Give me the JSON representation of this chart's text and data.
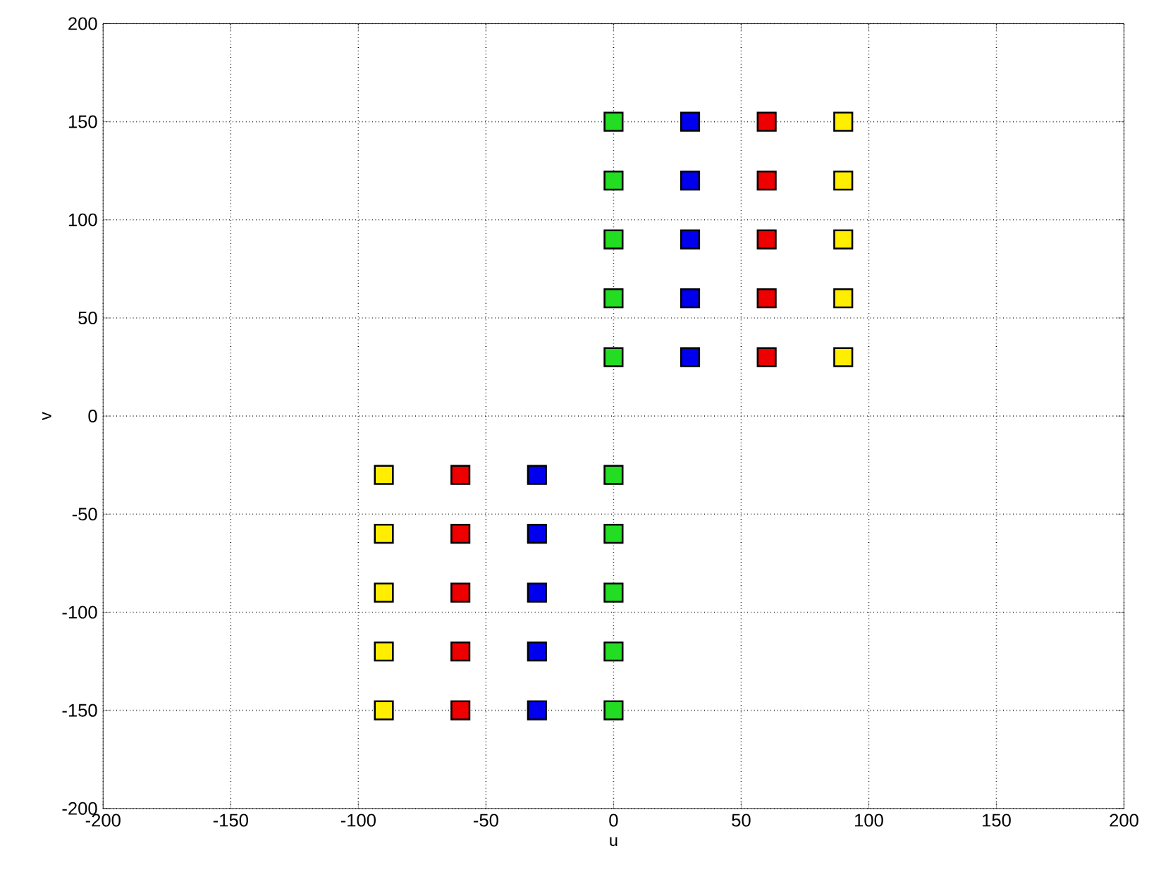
{
  "chart_data": {
    "type": "scatter",
    "xlabel": "u",
    "ylabel": "v",
    "xlim": [
      -200,
      200
    ],
    "ylim": [
      -200,
      200
    ],
    "xticks": [
      -200,
      -150,
      -100,
      -50,
      0,
      50,
      100,
      150,
      200
    ],
    "yticks": [
      -200,
      -150,
      -100,
      -50,
      0,
      50,
      100,
      150,
      200
    ],
    "grid": true,
    "marker": "square",
    "series": [
      {
        "color": "#22dd22",
        "x": [
          0,
          0,
          0,
          0,
          0,
          0,
          0,
          0,
          0,
          0
        ],
        "values": [
          30,
          60,
          90,
          120,
          150,
          -30,
          -60,
          -90,
          -120,
          -150
        ]
      },
      {
        "color": "#0000ee",
        "x": [
          30,
          30,
          30,
          30,
          30,
          -30,
          -30,
          -30,
          -30,
          -30
        ],
        "values": [
          30,
          60,
          90,
          120,
          150,
          -30,
          -60,
          -90,
          -120,
          -150
        ]
      },
      {
        "color": "#ee0000",
        "x": [
          60,
          60,
          60,
          60,
          60,
          -60,
          -60,
          -60,
          -60,
          -60
        ],
        "values": [
          30,
          60,
          90,
          120,
          150,
          -30,
          -60,
          -90,
          -120,
          -150
        ]
      },
      {
        "color": "#ffee00",
        "x": [
          90,
          90,
          90,
          90,
          90,
          -90,
          -90,
          -90,
          -90,
          -90
        ],
        "values": [
          30,
          60,
          90,
          120,
          150,
          -30,
          -60,
          -90,
          -120,
          -150
        ]
      }
    ]
  }
}
